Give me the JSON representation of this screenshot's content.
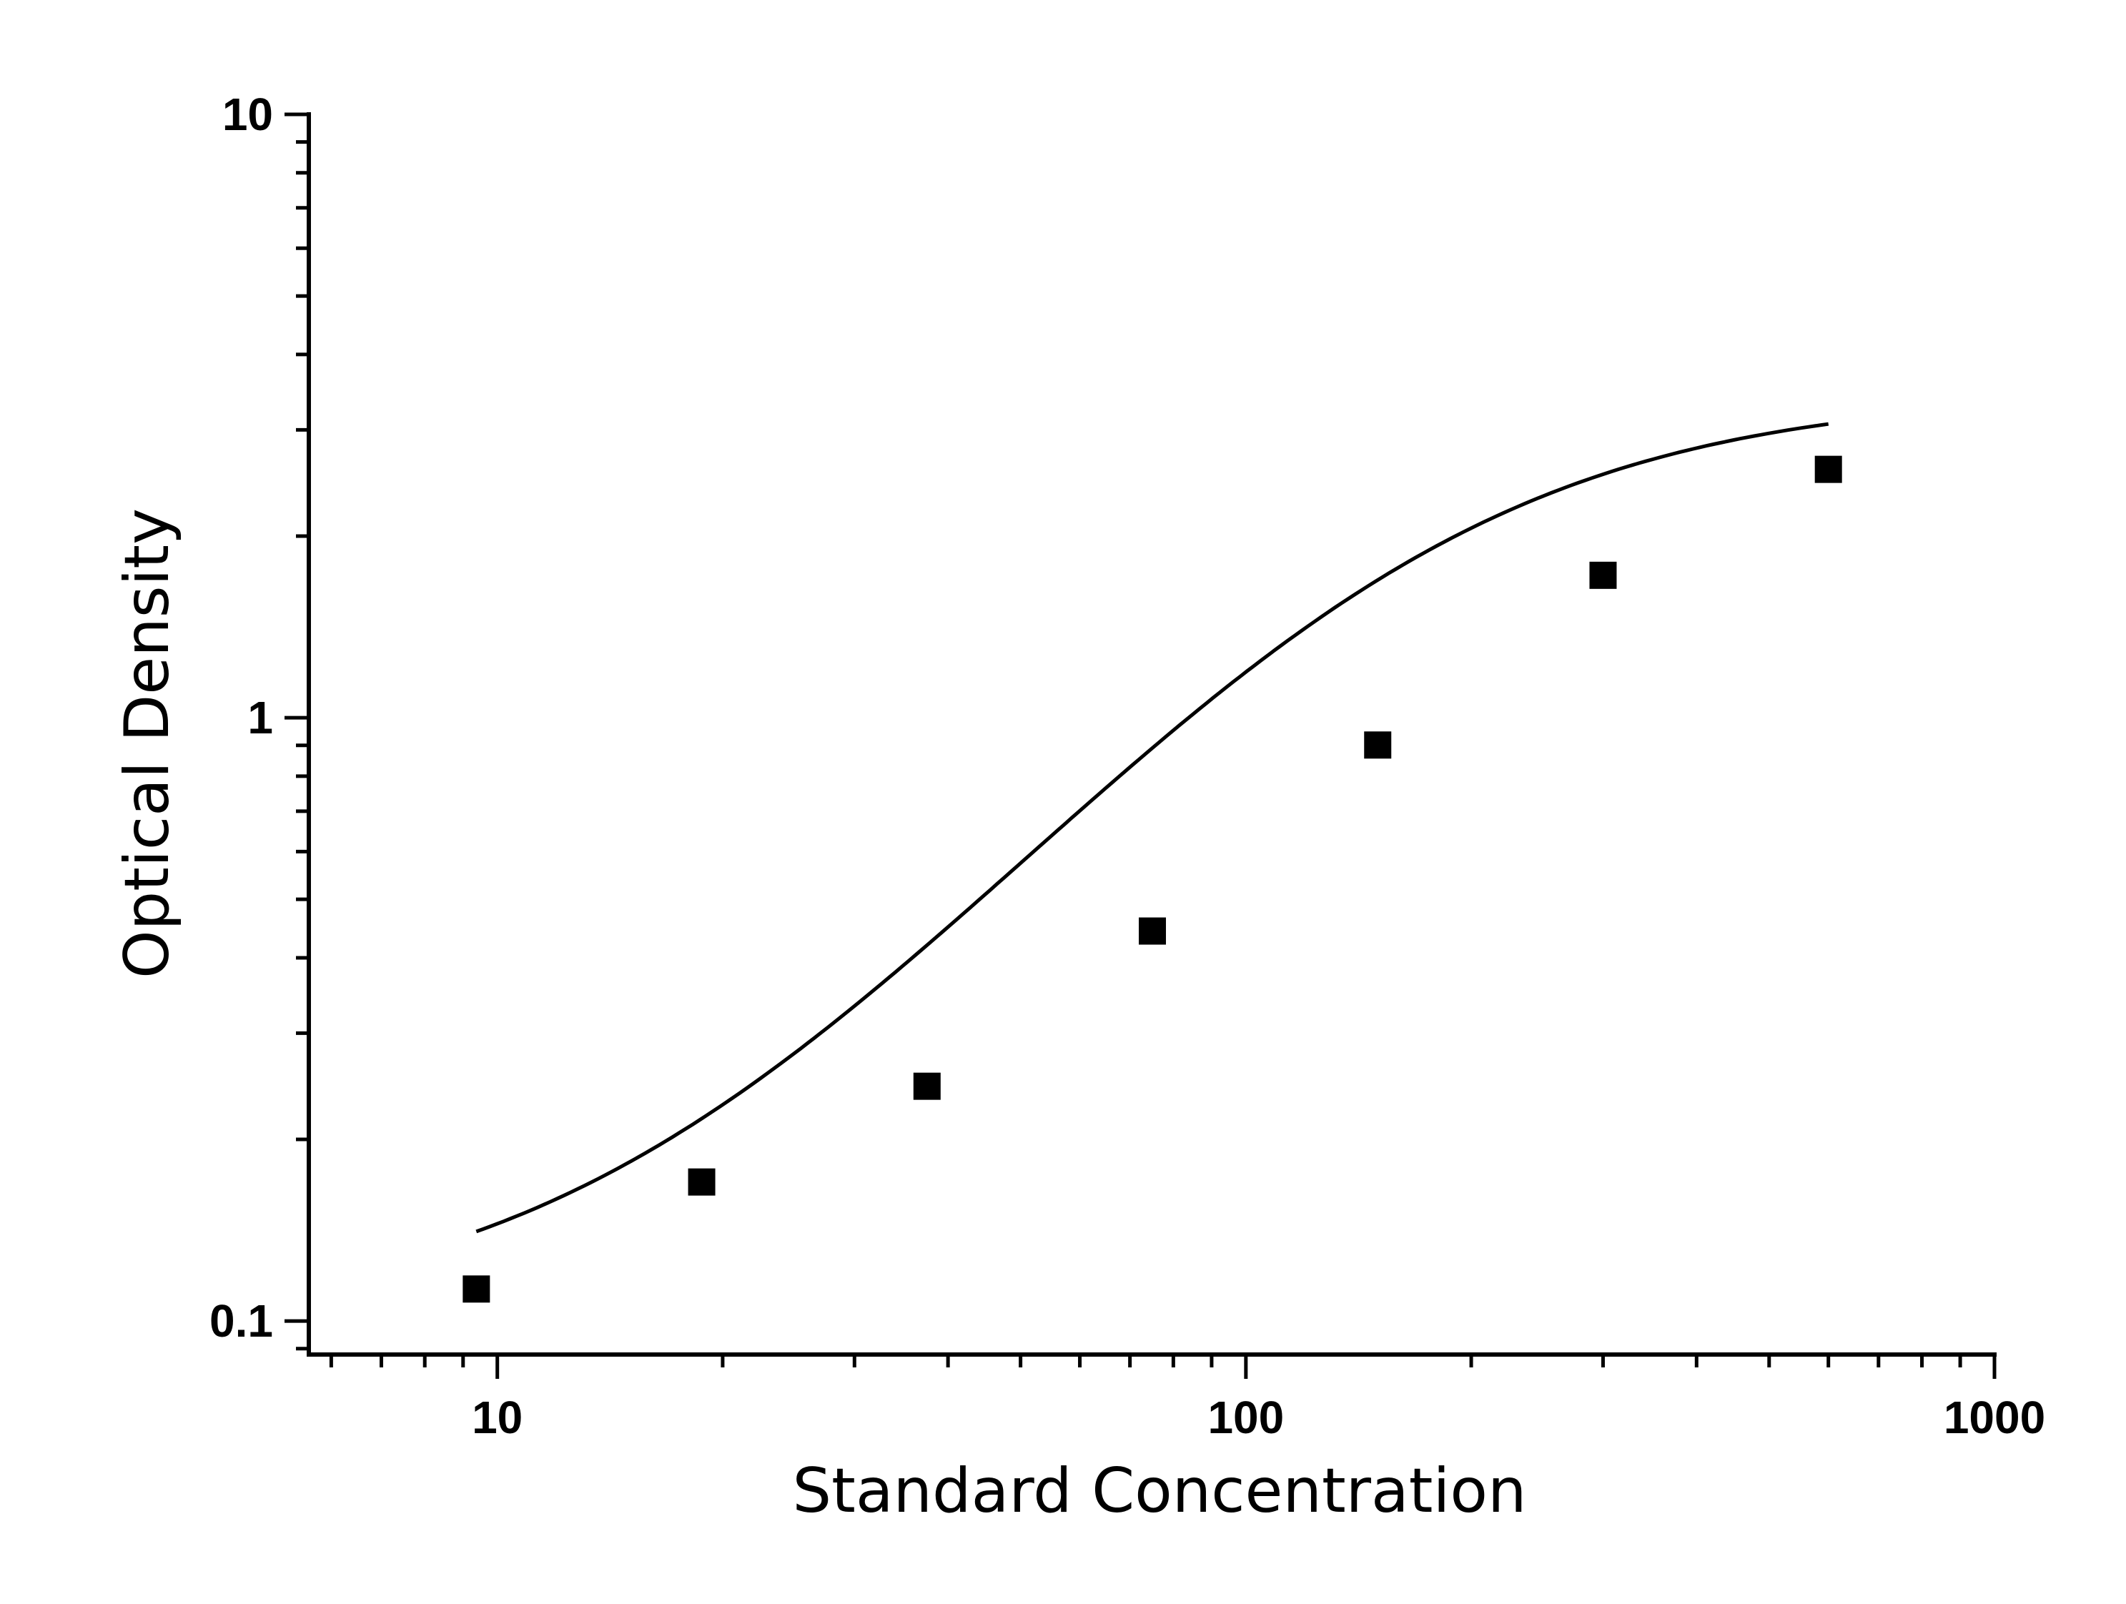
{
  "chart_data": {
    "type": "scatter",
    "title": "",
    "xlabel": "Standard Concentration",
    "ylabel": "Optical Density",
    "x_scale": "log",
    "y_scale": "log",
    "xlim": [
      5.6,
      1000
    ],
    "ylim": [
      0.088,
      10
    ],
    "x_tick_labels": [
      "10",
      "100",
      "1000"
    ],
    "y_tick_labels": [
      "0.1",
      "1",
      "10"
    ],
    "grid": false,
    "legend": "none",
    "marker": "square",
    "colors": {
      "marker": "#000000",
      "curve": "#000000",
      "axis": "#000000"
    },
    "series": [
      {
        "values": [
          {
            "x": 9.375,
            "y": 0.113
          },
          {
            "x": 18.75,
            "y": 0.17
          },
          {
            "x": 37.5,
            "y": 0.245
          },
          {
            "x": 75,
            "y": 0.443
          },
          {
            "x": 150,
            "y": 0.901
          },
          {
            "x": 300,
            "y": 1.722
          },
          {
            "x": 600,
            "y": 2.58
          }
        ]
      }
    ],
    "fit": {
      "type": "four-parameter-logistic",
      "params": {
        "A": 0.1,
        "B": 1.55,
        "C": 160,
        "D": 3.45
      },
      "x_range": [
        9.375,
        600
      ]
    }
  }
}
